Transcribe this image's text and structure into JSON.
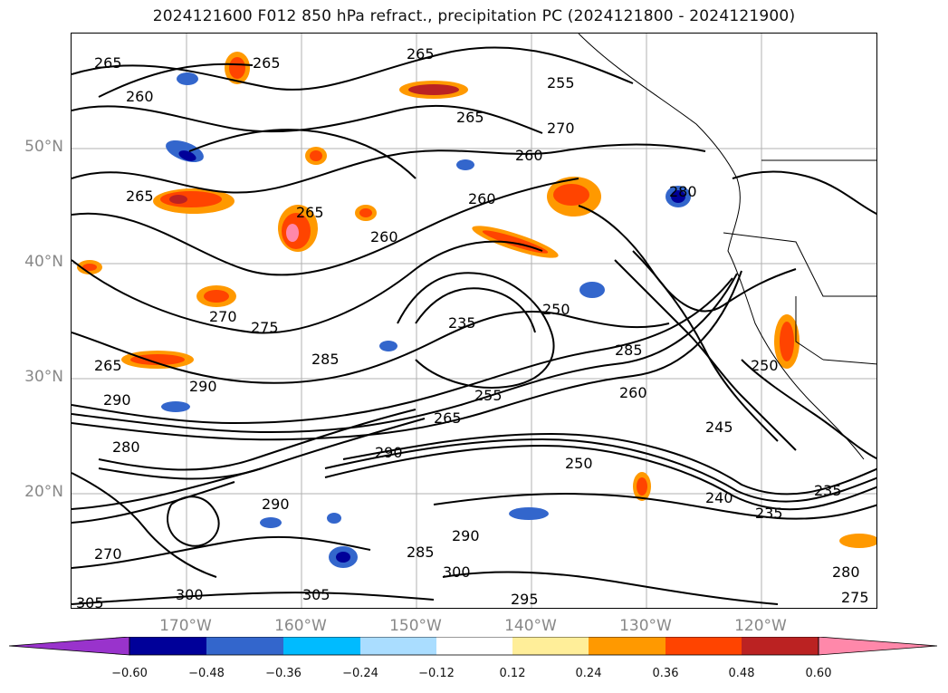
{
  "title": "2024121600 F012 850 hPa refract., precipitation PC (2024121800 - 2024121900)",
  "map": {
    "lat_labels": [
      "50°N",
      "40°N",
      "30°N",
      "20°N"
    ],
    "lon_labels": [
      "170°W",
      "160°W",
      "150°W",
      "140°W",
      "130°W",
      "120°W"
    ],
    "contour_labels": [
      "265",
      "260",
      "265",
      "265",
      "255",
      "265",
      "270",
      "260",
      "265",
      "260",
      "265",
      "260",
      "270",
      "275",
      "235",
      "250",
      "285",
      "265",
      "285",
      "290",
      "280",
      "290",
      "265",
      "245",
      "255",
      "290",
      "240",
      "235",
      "235",
      "290",
      "285",
      "290",
      "300",
      "295",
      "305",
      "300",
      "305",
      "250",
      "260",
      "270",
      "275",
      "280",
      "250",
      "280"
    ]
  },
  "colorbar": {
    "ticks": [
      "−0.60",
      "−0.48",
      "−0.36",
      "−0.24",
      "−0.12",
      "0.12",
      "0.24",
      "0.36",
      "0.48",
      "0.60"
    ],
    "colors": [
      "#9933cc",
      "#000099",
      "#3366cc",
      "#00bbff",
      "#aaddff",
      "#ffffff",
      "#ffee99",
      "#ff9900",
      "#ff4400",
      "#bb2222",
      "#ff88aa"
    ]
  }
}
